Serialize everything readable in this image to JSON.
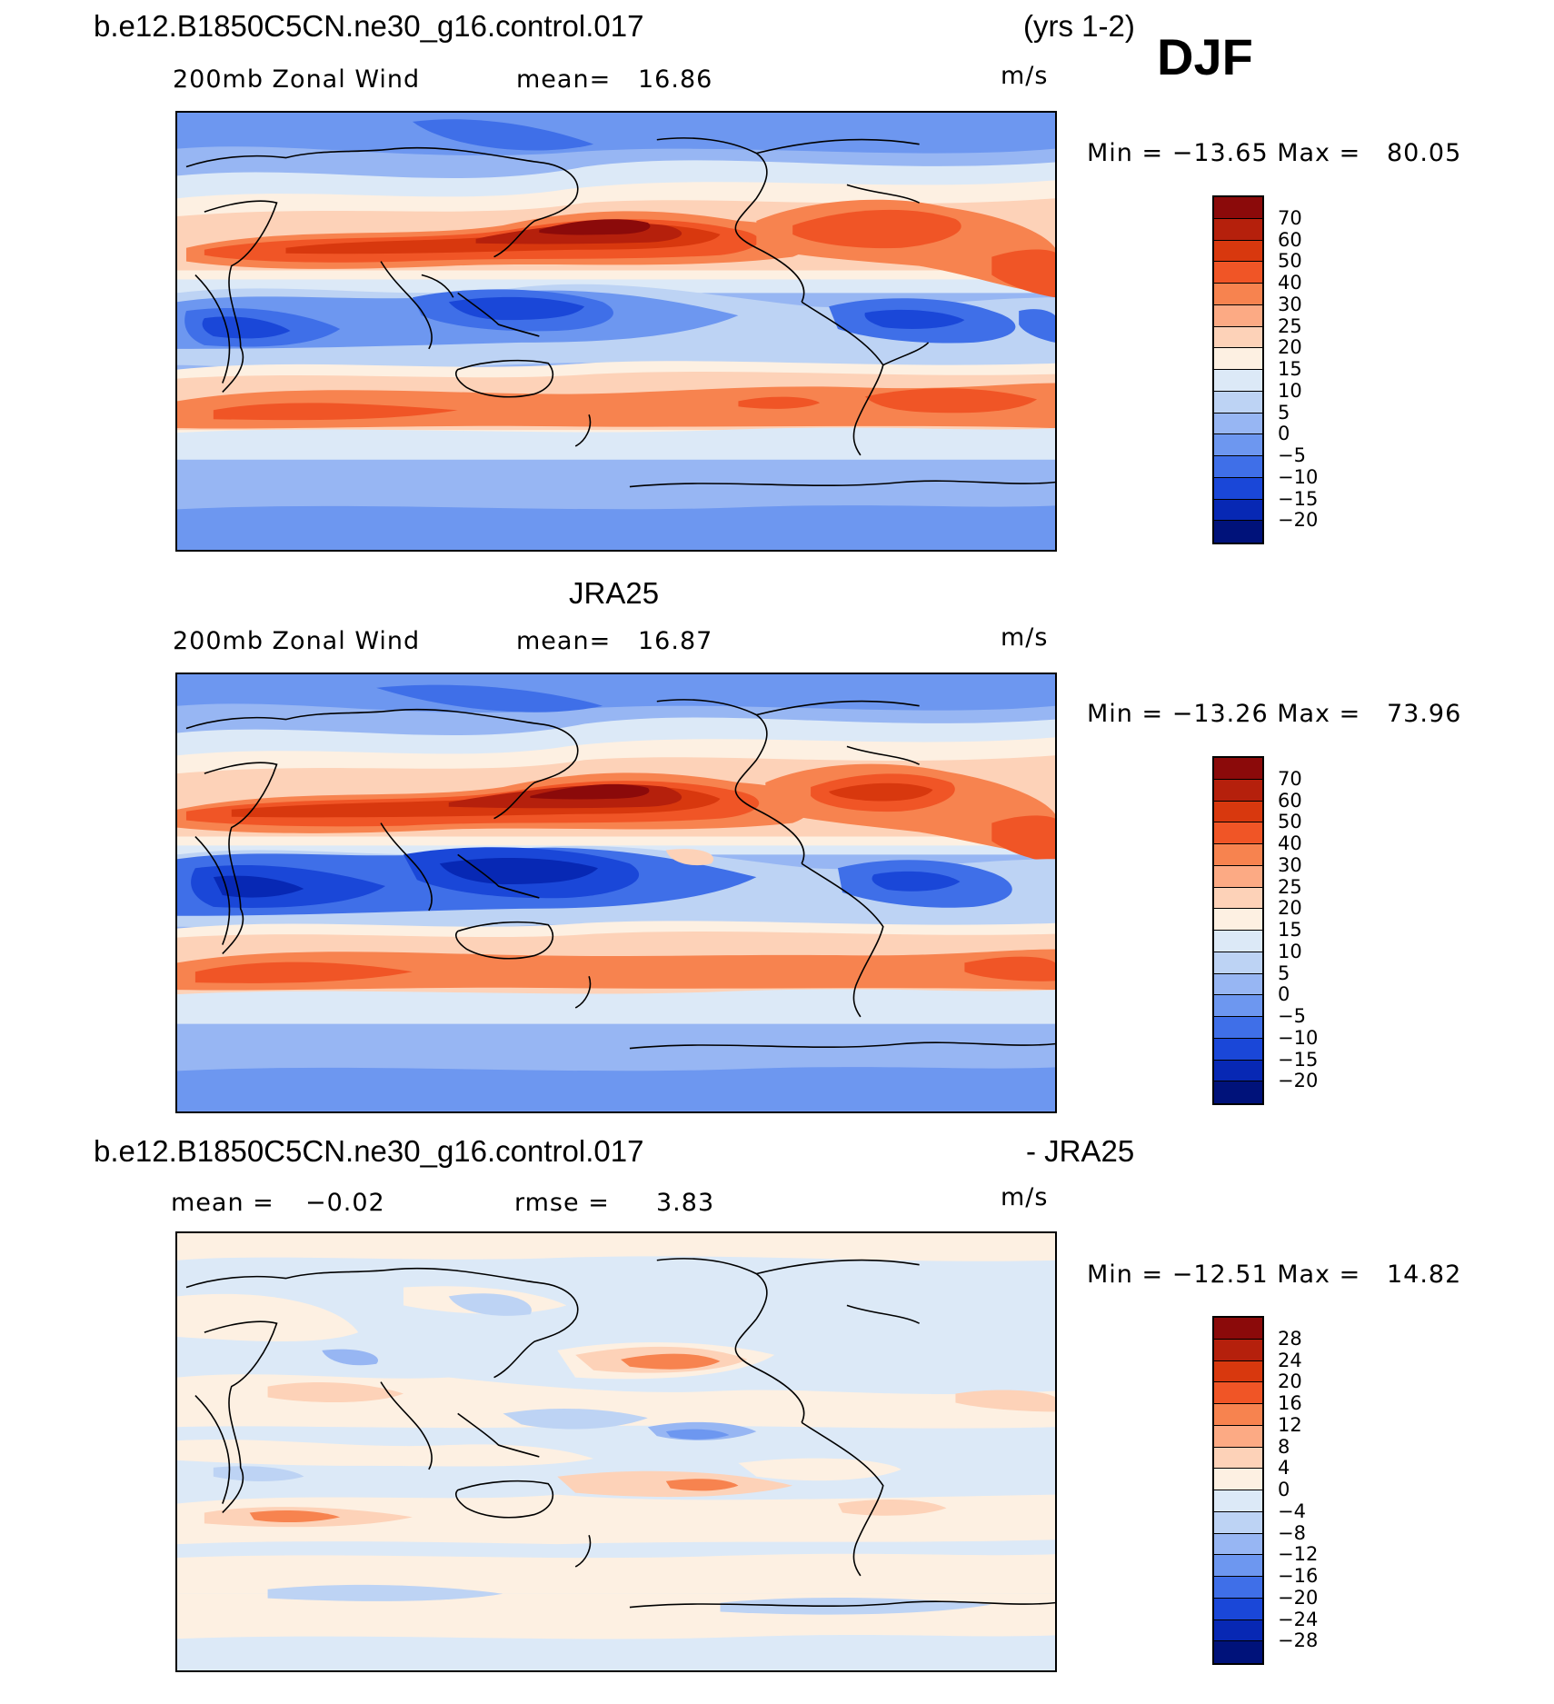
{
  "header": {
    "case_name": "b.e12.B1850C5CN.ne30_g16.control.017",
    "years": "(yrs 1-2)",
    "season": "DJF"
  },
  "panels": [
    {
      "title": "",
      "variable": "200mb Zonal Wind",
      "mean_label": "mean=",
      "mean_value": "16.86",
      "units": "m/s",
      "minmax": "Min = −13.65 Max =   80.05",
      "colorbar": {
        "labels": [
          "70",
          "60",
          "50",
          "40",
          "30",
          "25",
          "20",
          "15",
          "10",
          "5",
          "0",
          "−5",
          "−10",
          "−15",
          "−20"
        ],
        "colors": [
          "#8b0a0a",
          "#b5200c",
          "#d8380e",
          "#f05526",
          "#f7834f",
          "#fcaa84",
          "#fdd2b8",
          "#fdf0e2",
          "#dce9f7",
          "#bdd3f4",
          "#97b6f3",
          "#6d97f0",
          "#3f6fe8",
          "#1a47d8",
          "#0728b4",
          "#00127a"
        ]
      }
    },
    {
      "title": "JRA25",
      "variable": "200mb Zonal Wind",
      "mean_label": "mean=",
      "mean_value": "16.87",
      "units": "m/s",
      "minmax": "Min = −13.26 Max =   73.96",
      "colorbar": {
        "labels": [
          "70",
          "60",
          "50",
          "40",
          "30",
          "25",
          "20",
          "15",
          "10",
          "5",
          "0",
          "−5",
          "−10",
          "−15",
          "−20"
        ],
        "colors": [
          "#8b0a0a",
          "#b5200c",
          "#d8380e",
          "#f05526",
          "#f7834f",
          "#fcaa84",
          "#fdd2b8",
          "#fdf0e2",
          "#dce9f7",
          "#bdd3f4",
          "#97b6f3",
          "#6d97f0",
          "#3f6fe8",
          "#1a47d8",
          "#0728b4",
          "#00127a"
        ]
      }
    },
    {
      "title_left": "b.e12.B1850C5CN.ne30_g16.control.017",
      "title_right": "- JRA25",
      "mean_label": "mean =",
      "mean_value": "−0.02",
      "rmse_label": "rmse =",
      "rmse_value": "3.83",
      "units": "m/s",
      "minmax": "Min = −12.51 Max =   14.82",
      "colorbar": {
        "labels": [
          "28",
          "24",
          "20",
          "16",
          "12",
          "8",
          "4",
          "0",
          "−4",
          "−8",
          "−12",
          "−16",
          "−20",
          "−24",
          "−28"
        ],
        "colors": [
          "#8b0a0a",
          "#b5200c",
          "#d8380e",
          "#f05526",
          "#f7834f",
          "#fcaa84",
          "#fdd2b8",
          "#fdf0e2",
          "#dce9f7",
          "#bdd3f4",
          "#97b6f3",
          "#6d97f0",
          "#3f6fe8",
          "#1a47d8",
          "#0728b4",
          "#00127a"
        ]
      }
    }
  ]
}
